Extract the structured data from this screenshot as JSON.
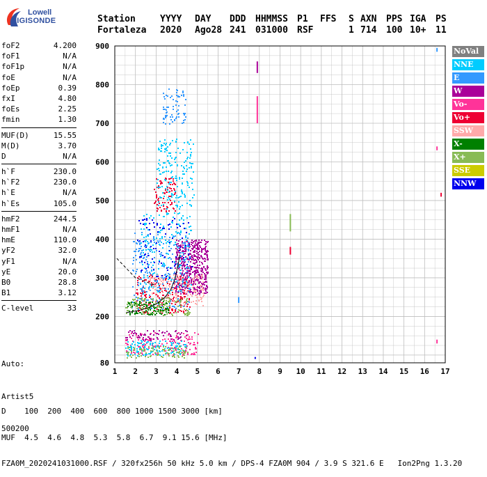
{
  "logo": {
    "line1": "Lowell",
    "line2": "DIGISONDE"
  },
  "header": {
    "labels": [
      "Station",
      "YYYY",
      "DAY",
      "DDD",
      "HHMMSS",
      "P1",
      "FFS",
      "S",
      "AXN",
      "PPS",
      "IGA",
      "PS"
    ],
    "values": [
      "Fortaleza",
      "2020",
      "Ago28",
      "241",
      "031000",
      "RSF",
      "",
      "1",
      "714",
      "100",
      "10+",
      "11"
    ]
  },
  "params": [
    [
      [
        "foF2",
        "4.200"
      ],
      [
        "foF1",
        "N/A"
      ],
      [
        "foF1p",
        "N/A"
      ],
      [
        "foE",
        "N/A"
      ],
      [
        "foEp",
        "0.39"
      ],
      [
        "fxI",
        "4.80"
      ],
      [
        "foEs",
        "2.25"
      ],
      [
        "fmin",
        "1.30"
      ]
    ],
    [
      [
        "MUF(D)",
        "15.55"
      ],
      [
        "M(D)",
        "3.70"
      ],
      [
        "D",
        "N/A"
      ]
    ],
    [
      [
        "h`F",
        "230.0"
      ],
      [
        "h`F2",
        "230.0"
      ],
      [
        "h`E",
        "N/A"
      ],
      [
        "h`Es",
        "105.0"
      ]
    ],
    [
      [
        "hmF2",
        "244.5"
      ],
      [
        "hmF1",
        "N/A"
      ],
      [
        "hmE",
        "110.0"
      ],
      [
        "yF2",
        "32.0"
      ],
      [
        "yF1",
        "N/A"
      ],
      [
        "yE",
        "20.0"
      ],
      [
        "B0",
        "28.8"
      ],
      [
        "B1",
        "3.12"
      ]
    ],
    [
      [
        "C-level",
        "33"
      ]
    ]
  ],
  "auto": [
    "Auto:",
    "Artist5",
    "500200"
  ],
  "footer": {
    "line1": "D    100  200  400  600  800 1000 1500 3000 [km]",
    "line2": "MUF  4.5  4.6  4.8  5.3  5.8  6.7  9.1 15.6 [MHz]",
    "line3": "FZA0M_2020241031000.RSF / 320fx256h 50 kHz 5.0 km / DPS-4 FZA0M 904 / 3.9 S 321.6 E   Ion2Png 1.3.20"
  },
  "legend": [
    {
      "label": "NoVal",
      "color": "#808080"
    },
    {
      "label": "NNE",
      "color": "#00ccff"
    },
    {
      "label": "E",
      "color": "#3399ff"
    },
    {
      "label": "W",
      "color": "#aa0099"
    },
    {
      "label": "Vo-",
      "color": "#ff3399"
    },
    {
      "label": "Vo+",
      "color": "#ee0033"
    },
    {
      "label": "SSW",
      "color": "#ffaaaa"
    },
    {
      "label": "X-",
      "color": "#008000"
    },
    {
      "label": "X+",
      "color": "#88bb55"
    },
    {
      "label": "SSE",
      "color": "#cccc00"
    },
    {
      "label": "NNW",
      "color": "#0000ee"
    }
  ],
  "chart_data": {
    "type": "scatter",
    "title": "",
    "xlabel": "",
    "ylabel": "",
    "xlim": [
      1,
      17
    ],
    "ylim": [
      80,
      900
    ],
    "x_ticks": [
      1,
      2,
      3,
      4,
      5,
      6,
      7,
      8,
      9,
      10,
      11,
      12,
      13,
      14,
      15,
      16,
      17
    ],
    "y_ticks": [
      80,
      200,
      300,
      400,
      500,
      600,
      700,
      800,
      900
    ],
    "grid": true,
    "point_clusters": [
      {
        "name": "W",
        "color": "#aa0099",
        "x": [
          3.9,
          5.5
        ],
        "y": [
          260,
          400
        ],
        "n": 500
      },
      {
        "name": "Vo+",
        "color": "#ee0033",
        "x": [
          2.0,
          4.6
        ],
        "y": [
          210,
          310
        ],
        "n": 220
      },
      {
        "name": "E",
        "color": "#3399ff",
        "x": [
          1.8,
          4.6
        ],
        "y": [
          220,
          420
        ],
        "n": 260
      },
      {
        "name": "NNE",
        "color": "#00ccff",
        "x": [
          2.2,
          4.7
        ],
        "y": [
          260,
          470
        ],
        "n": 180
      },
      {
        "name": "SSW",
        "color": "#ffaaaa",
        "x": [
          2.6,
          5.3
        ],
        "y": [
          230,
          310
        ],
        "n": 160
      },
      {
        "name": "X+",
        "color": "#88bb55",
        "x": [
          1.5,
          4.6
        ],
        "y": [
          205,
          250
        ],
        "n": 140
      },
      {
        "name": "X-",
        "color": "#008000",
        "x": [
          1.6,
          3.6
        ],
        "y": [
          205,
          240
        ],
        "n": 90
      },
      {
        "name": "NNW",
        "color": "#0000ee",
        "x": [
          2.0,
          4.7
        ],
        "y": [
          300,
          460
        ],
        "n": 90
      },
      {
        "name": "Vo+",
        "color": "#ee0033",
        "x": [
          2.9,
          3.9
        ],
        "y": [
          470,
          560
        ],
        "n": 90
      },
      {
        "name": "NNE",
        "color": "#00ccff",
        "x": [
          3.0,
          4.8
        ],
        "y": [
          480,
          660
        ],
        "n": 180
      },
      {
        "name": "E",
        "color": "#3399ff",
        "x": [
          3.3,
          4.4
        ],
        "y": [
          700,
          790
        ],
        "n": 70
      },
      {
        "name": "Vo-",
        "color": "#ff3399",
        "x": [
          1.5,
          5.0
        ],
        "y": [
          100,
          160
        ],
        "n": 160
      },
      {
        "name": "NNE",
        "color": "#00ccff",
        "x": [
          1.5,
          4.5
        ],
        "y": [
          100,
          140
        ],
        "n": 120
      },
      {
        "name": "X+",
        "color": "#88bb55",
        "x": [
          1.5,
          4.5
        ],
        "y": [
          95,
          125
        ],
        "n": 90
      },
      {
        "name": "W",
        "color": "#aa0099",
        "x": [
          1.5,
          4.5
        ],
        "y": [
          140,
          165
        ],
        "n": 70
      }
    ],
    "vertical_marks": [
      {
        "x": 7.9,
        "y": [
          700,
          770
        ],
        "color": "#ff3399"
      },
      {
        "x": 7.9,
        "y": [
          830,
          860
        ],
        "color": "#aa0099"
      },
      {
        "x": 9.5,
        "y": [
          420,
          465
        ],
        "color": "#88bb55"
      },
      {
        "x": 9.5,
        "y": [
          360,
          380
        ],
        "color": "#ee0033"
      },
      {
        "x": 7.0,
        "y": [
          235,
          250
        ],
        "color": "#3399ff"
      },
      {
        "x": 16.8,
        "y": [
          510,
          520
        ],
        "color": "#ee0033"
      },
      {
        "x": 16.6,
        "y": [
          630,
          640
        ],
        "color": "#ff3399"
      },
      {
        "x": 16.6,
        "y": [
          885,
          895
        ],
        "color": "#3399ff"
      },
      {
        "x": 7.8,
        "y": [
          90,
          95
        ],
        "color": "#0000ee"
      },
      {
        "x": 16.6,
        "y": [
          130,
          140
        ],
        "color": "#ff3399"
      }
    ],
    "trace_curve": {
      "x": [
        1.55,
        1.8,
        2.2,
        2.6,
        3.0,
        3.4,
        3.7,
        3.9,
        4.05,
        4.15
      ],
      "y": [
        210,
        212,
        216,
        222,
        232,
        248,
        268,
        295,
        330,
        360
      ]
    }
  }
}
